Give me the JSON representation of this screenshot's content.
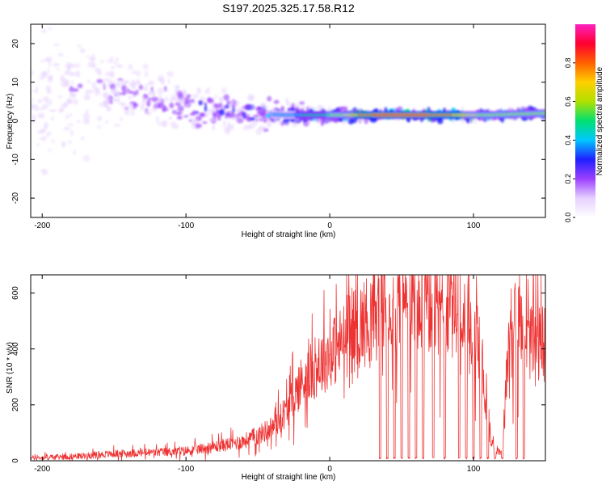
{
  "title": "S197.2025.325.17.58.R12",
  "colors": {
    "snr_line": "#ee3333",
    "axis": "#000000",
    "spec_core": "#ff2020",
    "spec_outer": "#a060ff"
  },
  "chart_data": [
    {
      "type": "heatmap",
      "xlabel": "Height of straight line (km)",
      "ylabel": "Frequency (Hz)",
      "xlim": [
        -208,
        150
      ],
      "ylim": [
        -25,
        25
      ],
      "xticks": [
        -200,
        -100,
        0,
        100
      ],
      "yticks": [
        -20,
        -10,
        0,
        10,
        20
      ],
      "colorbar": {
        "label": "Normalized spectral amplitude",
        "range": [
          0.0,
          1.0
        ],
        "ticks": [
          "0.0",
          "0.2",
          "0.4",
          "0.6",
          "0.8"
        ],
        "colormap": [
          "#ffffff",
          "#e6d0ff",
          "#9b40ff",
          "#2020ff",
          "#00c8ff",
          "#00e070",
          "#b0e000",
          "#ffd000",
          "#ff6000",
          "#ff0030",
          "#ff20c0"
        ]
      },
      "trend": [
        {
          "x": -200,
          "center_hz": 5,
          "spread_hz": 20,
          "amplitude": 0.15
        },
        {
          "x": -150,
          "center_hz": 8,
          "spread_hz": 8,
          "amplitude": 0.22
        },
        {
          "x": -120,
          "center_hz": 5,
          "spread_hz": 6,
          "amplitude": 0.25
        },
        {
          "x": -90,
          "center_hz": 3,
          "spread_hz": 5,
          "amplitude": 0.3
        },
        {
          "x": -60,
          "center_hz": 2,
          "spread_hz": 4,
          "amplitude": 0.35
        },
        {
          "x": -30,
          "center_hz": 1.5,
          "spread_hz": 3,
          "amplitude": 0.4
        },
        {
          "x": 0,
          "center_hz": 1.5,
          "spread_hz": 1.5,
          "amplitude": 0.55
        },
        {
          "x": 30,
          "center_hz": 1.5,
          "spread_hz": 1.2,
          "amplitude": 0.85
        },
        {
          "x": 60,
          "center_hz": 1.5,
          "spread_hz": 1.2,
          "amplitude": 0.9
        },
        {
          "x": 110,
          "center_hz": 1.5,
          "spread_hz": 1.2,
          "amplitude": 0.6
        },
        {
          "x": 150,
          "center_hz": 2,
          "spread_hz": 1.5,
          "amplitude": 0.55
        }
      ]
    },
    {
      "type": "line",
      "xlabel": "Height of straight line (km)",
      "ylabel": "SNR (10 * v/v)",
      "xlim": [
        -208,
        150
      ],
      "ylim": [
        0,
        665
      ],
      "xticks": [
        -200,
        -100,
        0,
        100
      ],
      "yticks": [
        0,
        200,
        400,
        600
      ],
      "series": [
        {
          "name": "SNR",
          "x": [
            -208,
            -180,
            -150,
            -120,
            -100,
            -80,
            -60,
            -50,
            -40,
            -30,
            -25,
            -20,
            -10,
            0,
            10,
            20,
            30,
            40,
            50,
            60,
            70,
            80,
            90,
            100,
            105,
            110,
            115,
            120,
            125,
            130,
            140,
            150
          ],
          "y": [
            10,
            15,
            25,
            30,
            35,
            50,
            70,
            90,
            120,
            180,
            230,
            280,
            330,
            380,
            430,
            480,
            520,
            540,
            555,
            555,
            545,
            535,
            520,
            500,
            400,
            120,
            40,
            20,
            500,
            480,
            420,
            420
          ],
          "dropouts": [
            35,
            40,
            45,
            50,
            55,
            60,
            65,
            72,
            80,
            90,
            95,
            100,
            105,
            110,
            115,
            120,
            130,
            135
          ]
        }
      ]
    }
  ]
}
